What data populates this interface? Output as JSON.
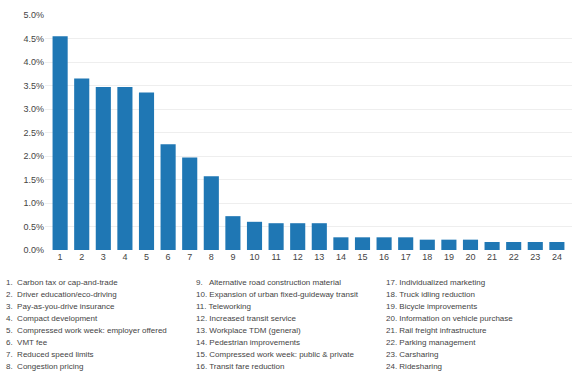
{
  "chart_data": {
    "type": "bar",
    "categories": [
      1,
      2,
      3,
      4,
      5,
      6,
      7,
      8,
      9,
      10,
      11,
      12,
      13,
      14,
      15,
      16,
      17,
      18,
      19,
      20,
      21,
      22,
      23,
      24
    ],
    "values": [
      4.55,
      3.65,
      3.47,
      3.47,
      3.35,
      2.25,
      1.97,
      1.57,
      0.72,
      0.6,
      0.57,
      0.57,
      0.57,
      0.27,
      0.27,
      0.27,
      0.27,
      0.22,
      0.22,
      0.22,
      0.17,
      0.17,
      0.17,
      0.17
    ],
    "ylim": [
      0,
      5.0
    ],
    "yticks": [
      {
        "value": 0.0,
        "label": "0.0%"
      },
      {
        "value": 0.5,
        "label": "0.5%"
      },
      {
        "value": 1.0,
        "label": "1.0%"
      },
      {
        "value": 1.5,
        "label": "1.5%"
      },
      {
        "value": 2.0,
        "label": "2.0%"
      },
      {
        "value": 2.5,
        "label": "2.5%"
      },
      {
        "value": 3.0,
        "label": "3.0%"
      },
      {
        "value": 3.5,
        "label": "3.5%"
      },
      {
        "value": 4.0,
        "label": "4.0%"
      },
      {
        "value": 4.5,
        "label": "4.5%"
      },
      {
        "value": 5.0,
        "label": "5.0%"
      }
    ],
    "grid": true,
    "annotations": [
      "1.  Carbon tax or cap-and-trade",
      "2.  Driver education/eco-driving",
      "3.  Pay-as-you-drive insurance",
      "4.  Compact development",
      "5.  Compressed work week: employer offered",
      "6.  VMT fee",
      "7.  Reduced speed limits",
      "8.  Congestion pricing",
      "9.   Alternative road construction material",
      "10. Expansion of urban fixed-guideway transit",
      "11. Teleworking",
      "12. Increased transit service",
      "13. Workplace TDM (general)",
      "14. Pedestrian improvements",
      "15. Compressed work week: public & private",
      "16. Transit fare reduction",
      "17. Individualized marketing",
      "18. Truck idling reduction",
      "19. Bicycle improvements",
      "20. Information on vehicle purchase",
      "21. Rail freight infrastructure",
      "22. Parking management",
      "23. Carsharing",
      "24. Ridesharing"
    ]
  }
}
